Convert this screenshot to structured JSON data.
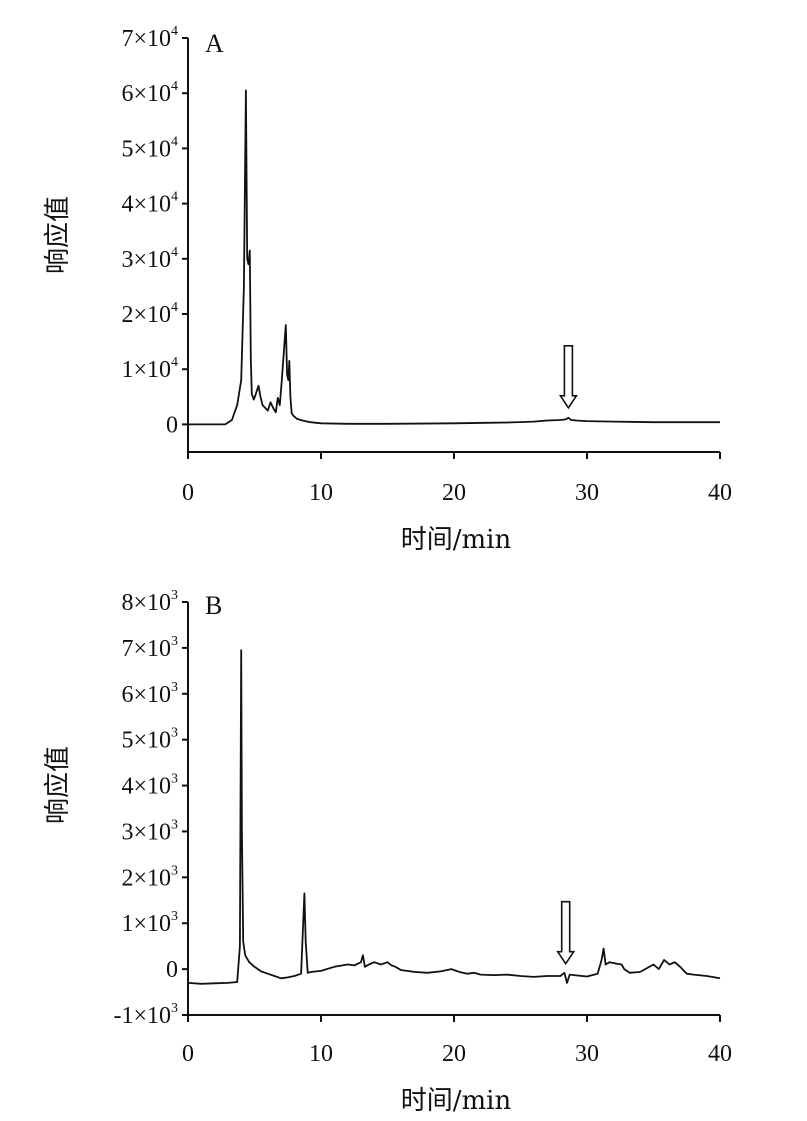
{
  "chart_data": [
    {
      "type": "line",
      "panel_label": "A",
      "xlabel": "时间/min",
      "ylabel": "响应值",
      "xlim": [
        0,
        40
      ],
      "ylim": [
        -5000,
        70000
      ],
      "x_ticks": [
        0,
        10,
        20,
        30,
        40
      ],
      "x_tick_labels": [
        "0",
        "10",
        "20",
        "30",
        "40"
      ],
      "y_ticks": [
        0,
        10000,
        20000,
        30000,
        40000,
        50000,
        60000,
        70000
      ],
      "y_tick_labels": [
        {
          "mantissa": "0",
          "exp": ""
        },
        {
          "mantissa": "1×10",
          "exp": "4"
        },
        {
          "mantissa": "2×10",
          "exp": "4"
        },
        {
          "mantissa": "3×10",
          "exp": "4"
        },
        {
          "mantissa": "4×10",
          "exp": "4"
        },
        {
          "mantissa": "5×10",
          "exp": "4"
        },
        {
          "mantissa": "6×10",
          "exp": "4"
        },
        {
          "mantissa": "7×10",
          "exp": "4"
        }
      ],
      "arrow_at": {
        "x": 28.6,
        "y": 1200
      },
      "series": [
        {
          "x": [
            0,
            2.8,
            3.3,
            3.7,
            4.0,
            4.2,
            4.35,
            4.45,
            4.55,
            4.65,
            4.72,
            4.8,
            4.95,
            5.1,
            5.3,
            5.45,
            5.6,
            5.8,
            6.0,
            6.2,
            6.4,
            6.6,
            6.75,
            6.9,
            7.05,
            7.2,
            7.35,
            7.45,
            7.55,
            7.62,
            7.7,
            7.8,
            7.95,
            8.2,
            8.6,
            9.2,
            10,
            12,
            15,
            20,
            23,
            24,
            26,
            27,
            28,
            28.4,
            28.6,
            28.8,
            29.2,
            30,
            32,
            35,
            40
          ],
          "y": [
            0,
            0,
            800,
            3500,
            8000,
            25000,
            60500,
            30000,
            29000,
            31500,
            12000,
            5500,
            4500,
            5500,
            7000,
            5000,
            3500,
            3000,
            2500,
            4000,
            3000,
            2200,
            4800,
            3500,
            8000,
            13000,
            18000,
            9000,
            8000,
            11500,
            5000,
            2000,
            1500,
            1000,
            700,
            400,
            200,
            100,
            100,
            200,
            300,
            350,
            500,
            700,
            800,
            900,
            1200,
            800,
            700,
            600,
            500,
            400,
            400
          ]
        }
      ]
    },
    {
      "type": "line",
      "panel_label": "B",
      "xlabel": "时间/min",
      "ylabel": "响应值",
      "xlim": [
        0,
        40
      ],
      "ylim": [
        -1000,
        8000
      ],
      "x_ticks": [
        0,
        10,
        20,
        30,
        40
      ],
      "x_tick_labels": [
        "0",
        "10",
        "20",
        "30",
        "40"
      ],
      "y_ticks": [
        -1000,
        0,
        1000,
        2000,
        3000,
        4000,
        5000,
        6000,
        7000,
        8000
      ],
      "y_tick_labels": [
        {
          "mantissa": "-1×10",
          "exp": "3"
        },
        {
          "mantissa": "0",
          "exp": ""
        },
        {
          "mantissa": "1×10",
          "exp": "3"
        },
        {
          "mantissa": "2×10",
          "exp": "3"
        },
        {
          "mantissa": "3×10",
          "exp": "3"
        },
        {
          "mantissa": "4×10",
          "exp": "3"
        },
        {
          "mantissa": "5×10",
          "exp": "3"
        },
        {
          "mantissa": "6×10",
          "exp": "3"
        },
        {
          "mantissa": "7×10",
          "exp": "3"
        },
        {
          "mantissa": "8×10",
          "exp": "3"
        }
      ],
      "arrow_at": {
        "x": 28.4,
        "y": -100
      },
      "series": [
        {
          "x": [
            0,
            1,
            2,
            3,
            3.7,
            3.9,
            4.0,
            4.05,
            4.15,
            4.3,
            4.6,
            5.0,
            5.5,
            6.0,
            6.5,
            7.0,
            7.5,
            8.0,
            8.5,
            8.75,
            8.85,
            9.0,
            9.3,
            10,
            11,
            12,
            12.5,
            13.0,
            13.15,
            13.3,
            13.6,
            14,
            14.5,
            15.0,
            15.3,
            15.6,
            16,
            17,
            18,
            19,
            19.8,
            20.5,
            21,
            21.5,
            22,
            23,
            24,
            25,
            26,
            27,
            28.0,
            28.3,
            28.5,
            28.7,
            29.0,
            30.0,
            30.8,
            31.1,
            31.25,
            31.4,
            31.7,
            32.2,
            32.6,
            32.8,
            33.2,
            34,
            35,
            35.4,
            35.8,
            36.2,
            36.6,
            37,
            37.5,
            38,
            39,
            40
          ],
          "y": [
            -300,
            -320,
            -310,
            -300,
            -280,
            500,
            6950,
            3000,
            600,
            300,
            150,
            50,
            -50,
            -100,
            -150,
            -200,
            -180,
            -150,
            -100,
            1650,
            600,
            -80,
            -60,
            -40,
            50,
            100,
            80,
            150,
            300,
            50,
            100,
            150,
            100,
            150,
            80,
            50,
            -20,
            -60,
            -80,
            -50,
            0,
            -70,
            -100,
            -80,
            -120,
            -130,
            -120,
            -150,
            -170,
            -150,
            -150,
            -80,
            -300,
            -120,
            -130,
            -160,
            -100,
            200,
            450,
            100,
            150,
            120,
            100,
            0,
            -80,
            -60,
            100,
            0,
            200,
            100,
            150,
            50,
            -100,
            -120,
            -150,
            -200
          ]
        }
      ]
    }
  ]
}
